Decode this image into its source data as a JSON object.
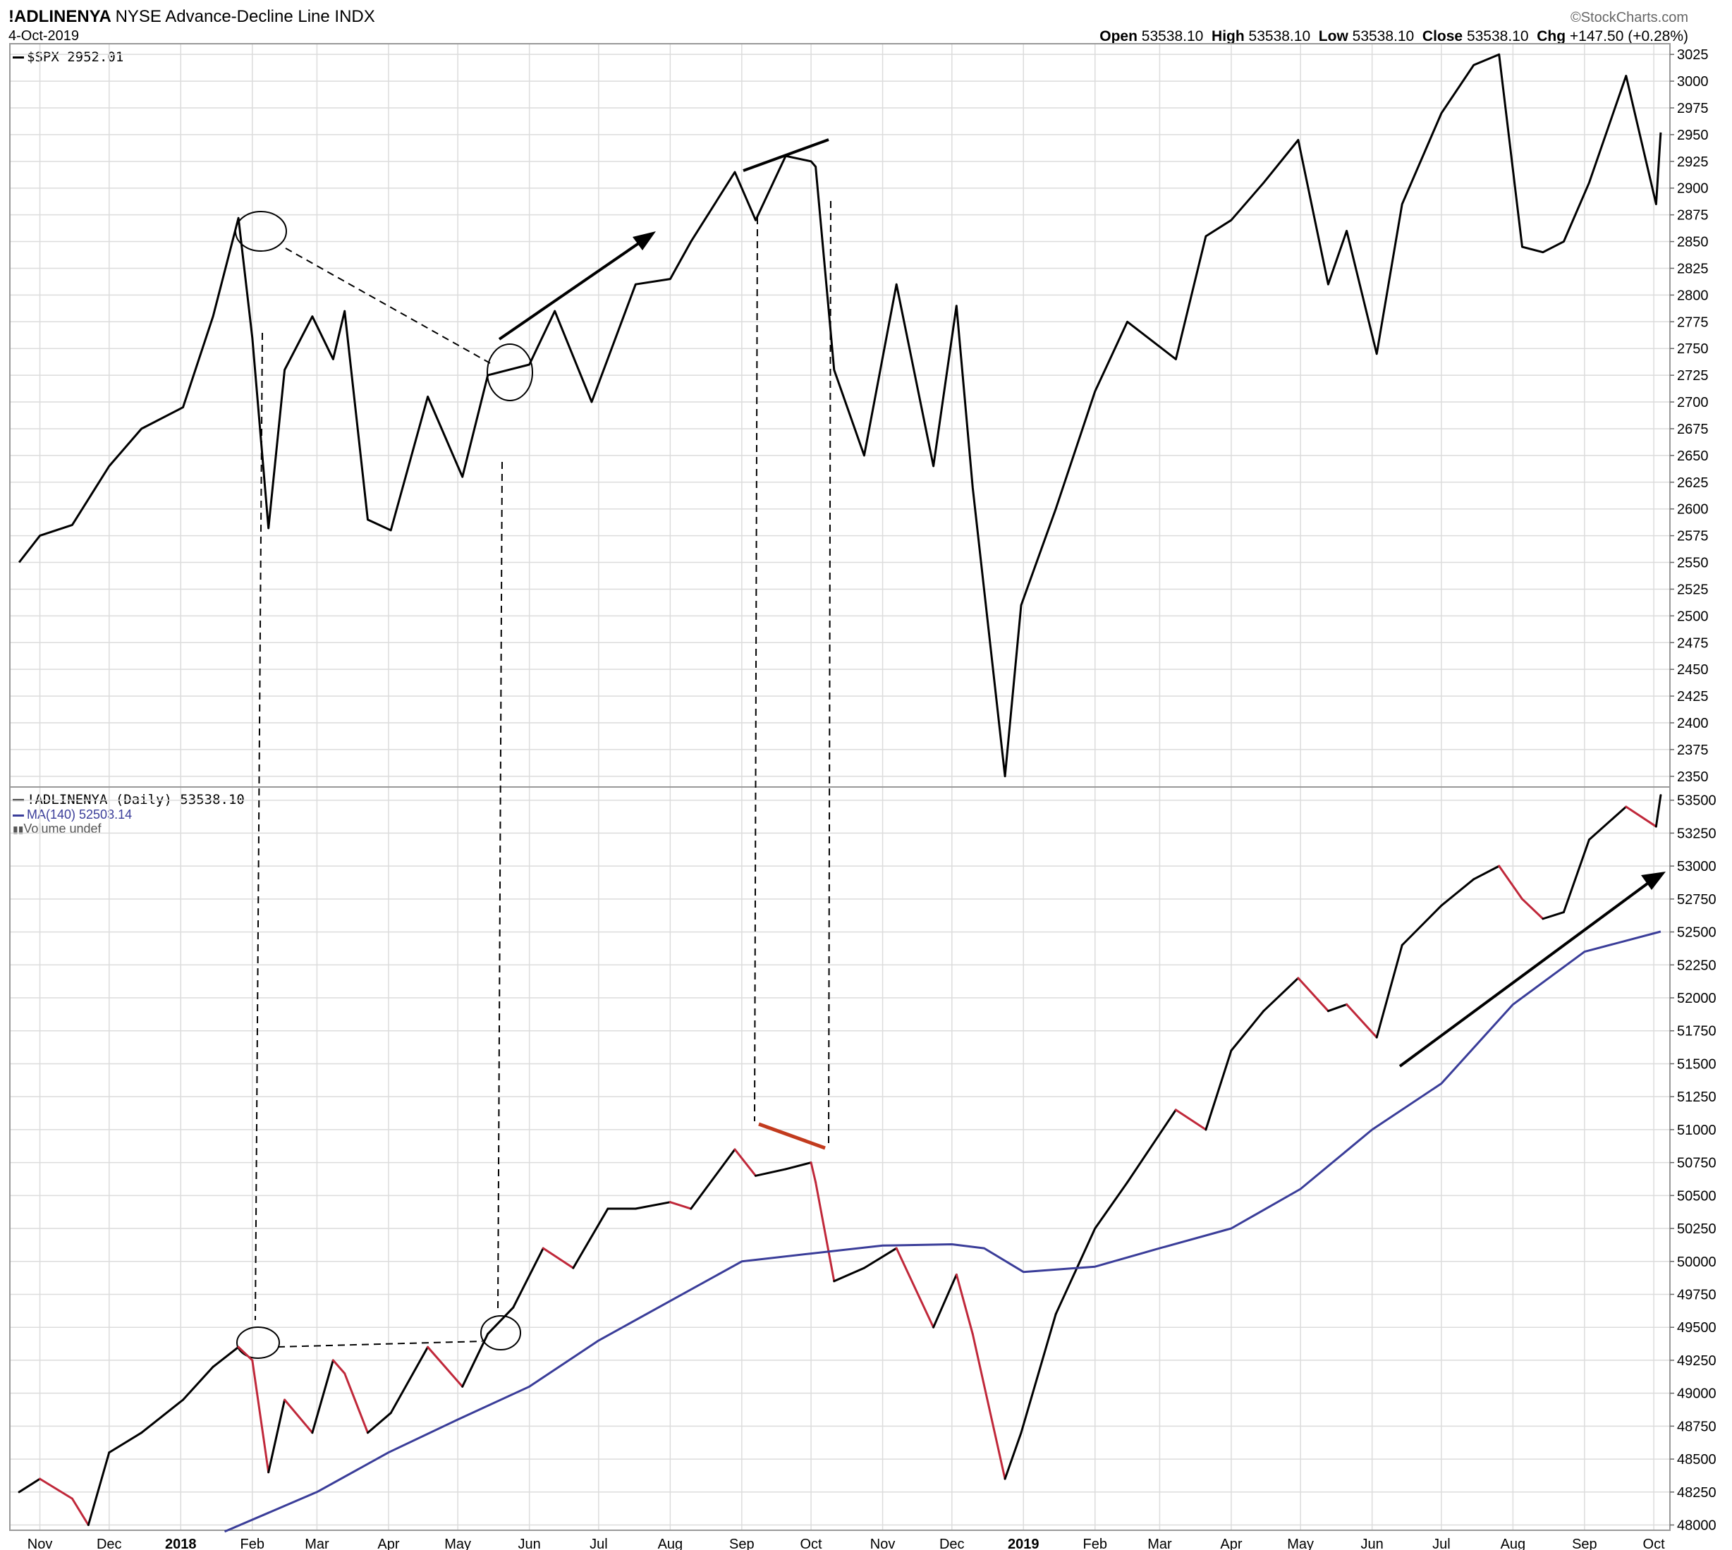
{
  "header": {
    "symbol": "!ADLINENYA",
    "description": "NYSE Advance-Decline Line",
    "exchange": "INDX",
    "date": "4-Oct-2019",
    "brand": "©StockCharts.com",
    "open_label": "Open",
    "open": "53538.10",
    "high_label": "High",
    "high": "53538.10",
    "low_label": "Low",
    "low": "53538.10",
    "close_label": "Close",
    "close": "53538.10",
    "chg_label": "Chg",
    "chg": "+147.50 (+0.28%)"
  },
  "legend": {
    "spx": "$SPX 2952.01",
    "adl": "!ADLINENYA (Daily) 53538.10",
    "ma": "MA(140) 52503.14",
    "volume": "Volume undef"
  },
  "colors": {
    "price": "#000000",
    "adl_down": "#c0283a",
    "ma": "#3a3d99",
    "grid": "#dcdcdc",
    "annotation_red": "#c23b1e"
  },
  "chart_data": [
    {
      "type": "line",
      "title": "$SPX 2952.01",
      "x_ticks": [
        "Nov",
        "Dec",
        "2018",
        "Feb",
        "Mar",
        "Apr",
        "May",
        "Jun",
        "Jul",
        "Aug",
        "Sep",
        "Oct",
        "Nov",
        "Dec",
        "2019",
        "Feb",
        "Mar",
        "Apr",
        "May",
        "Jun",
        "Jul",
        "Aug",
        "Sep",
        "Oct"
      ],
      "y_ticks": [
        2350,
        2375,
        2400,
        2425,
        2450,
        2475,
        2500,
        2525,
        2550,
        2575,
        2600,
        2625,
        2650,
        2675,
        2700,
        2725,
        2750,
        2775,
        2800,
        2825,
        2850,
        2875,
        2900,
        2925,
        2950,
        2975,
        3000,
        3025
      ],
      "ylim": [
        2340,
        3035
      ],
      "grid": true,
      "series": [
        {
          "name": "$SPX",
          "x": [
            "2017-10-23",
            "2017-11-01",
            "2017-11-15",
            "2017-12-01",
            "2017-12-15",
            "2018-01-02",
            "2018-01-15",
            "2018-01-26",
            "2018-02-01",
            "2018-02-08",
            "2018-02-15",
            "2018-02-27",
            "2018-03-08",
            "2018-03-13",
            "2018-03-23",
            "2018-04-02",
            "2018-04-18",
            "2018-05-03",
            "2018-05-14",
            "2018-06-01",
            "2018-06-12",
            "2018-06-28",
            "2018-07-17",
            "2018-08-01",
            "2018-08-10",
            "2018-08-29",
            "2018-09-07",
            "2018-09-20",
            "2018-10-01",
            "2018-10-03",
            "2018-10-11",
            "2018-10-24",
            "2018-11-07",
            "2018-11-23",
            "2018-12-03",
            "2018-12-10",
            "2018-12-24",
            "2018-12-31",
            "2019-01-15",
            "2019-02-01",
            "2019-02-15",
            "2019-03-08",
            "2019-03-21",
            "2019-04-01",
            "2019-04-15",
            "2019-04-30",
            "2019-05-13",
            "2019-05-21",
            "2019-06-03",
            "2019-06-14",
            "2019-07-01",
            "2019-07-15",
            "2019-07-26",
            "2019-08-05",
            "2019-08-14",
            "2019-08-23",
            "2019-09-03",
            "2019-09-19",
            "2019-10-02",
            "2019-10-04"
          ],
          "values": [
            2550,
            2575,
            2585,
            2640,
            2675,
            2695,
            2780,
            2872,
            2760,
            2582,
            2730,
            2780,
            2740,
            2785,
            2590,
            2580,
            2705,
            2630,
            2725,
            2735,
            2785,
            2700,
            2810,
            2815,
            2850,
            2915,
            2870,
            2930,
            2925,
            2920,
            2730,
            2650,
            2810,
            2640,
            2790,
            2620,
            2350,
            2510,
            2600,
            2710,
            2775,
            2740,
            2855,
            2870,
            2905,
            2945,
            2810,
            2860,
            2745,
            2885,
            2970,
            3015,
            3025,
            2845,
            2840,
            2850,
            2905,
            3005,
            2885,
            2952
          ]
        }
      ]
    },
    {
      "type": "line",
      "title": "!ADLINENYA (Daily) 53538.10",
      "x_ticks": [
        "Nov",
        "Dec",
        "2018",
        "Feb",
        "Mar",
        "Apr",
        "May",
        "Jun",
        "Jul",
        "Aug",
        "Sep",
        "Oct",
        "Nov",
        "Dec",
        "2019",
        "Feb",
        "Mar",
        "Apr",
        "May",
        "Jun",
        "Jul",
        "Aug",
        "Sep",
        "Oct"
      ],
      "y_ticks": [
        48000,
        48250,
        48500,
        48750,
        49000,
        49250,
        49500,
        49750,
        50000,
        50250,
        50500,
        50750,
        51000,
        51250,
        51500,
        51750,
        52000,
        52250,
        52500,
        52750,
        53000,
        53250,
        53500
      ],
      "ylim": [
        47960,
        53600
      ],
      "grid": true,
      "series": [
        {
          "name": "!ADLINENYA",
          "x": [
            "2017-10-23",
            "2017-11-01",
            "2017-11-15",
            "2017-11-22",
            "2017-12-01",
            "2017-12-15",
            "2018-01-02",
            "2018-01-15",
            "2018-01-26",
            "2018-02-01",
            "2018-02-08",
            "2018-02-15",
            "2018-02-27",
            "2018-03-08",
            "2018-03-13",
            "2018-03-23",
            "2018-04-02",
            "2018-04-18",
            "2018-05-03",
            "2018-05-14",
            "2018-05-25",
            "2018-06-07",
            "2018-06-20",
            "2018-07-05",
            "2018-07-17",
            "2018-08-01",
            "2018-08-10",
            "2018-08-29",
            "2018-09-07",
            "2018-09-20",
            "2018-10-01",
            "2018-10-03",
            "2018-10-11",
            "2018-10-24",
            "2018-11-07",
            "2018-11-23",
            "2018-12-03",
            "2018-12-10",
            "2018-12-24",
            "2018-12-31",
            "2019-01-15",
            "2019-02-01",
            "2019-02-15",
            "2019-03-08",
            "2019-03-21",
            "2019-04-01",
            "2019-04-15",
            "2019-04-30",
            "2019-05-13",
            "2019-05-21",
            "2019-06-03",
            "2019-06-14",
            "2019-07-01",
            "2019-07-15",
            "2019-07-26",
            "2019-08-05",
            "2019-08-14",
            "2019-08-23",
            "2019-09-03",
            "2019-09-19",
            "2019-10-02",
            "2019-10-04"
          ],
          "values": [
            48250,
            48350,
            48200,
            48000,
            48550,
            48700,
            48950,
            49200,
            49350,
            49250,
            48400,
            48950,
            48700,
            49250,
            49150,
            48700,
            48850,
            49350,
            49050,
            49450,
            49650,
            50100,
            49950,
            50400,
            50400,
            50450,
            50400,
            50850,
            50650,
            50700,
            50750,
            50600,
            49850,
            49950,
            50100,
            49500,
            49900,
            49450,
            48350,
            48700,
            49600,
            50250,
            50600,
            51150,
            51000,
            51600,
            51900,
            52150,
            51900,
            51950,
            51700,
            52400,
            52700,
            52900,
            53000,
            52750,
            52600,
            52650,
            53200,
            53450,
            53300,
            53538
          ]
        },
        {
          "name": "MA(140)",
          "x": [
            "2018-01-20",
            "2018-03-01",
            "2018-04-01",
            "2018-05-01",
            "2018-06-01",
            "2018-07-01",
            "2018-08-01",
            "2018-09-01",
            "2018-10-01",
            "2018-11-01",
            "2018-12-01",
            "2018-12-15",
            "2019-01-01",
            "2019-02-01",
            "2019-03-01",
            "2019-04-01",
            "2019-05-01",
            "2019-06-01",
            "2019-07-01",
            "2019-08-01",
            "2019-09-01",
            "2019-10-04"
          ],
          "values": [
            47950,
            48250,
            48550,
            48800,
            49050,
            49400,
            49700,
            50000,
            50060,
            50120,
            50130,
            50100,
            49920,
            49960,
            50100,
            50250,
            50550,
            51000,
            51350,
            51950,
            52350,
            52503
          ]
        }
      ]
    }
  ]
}
